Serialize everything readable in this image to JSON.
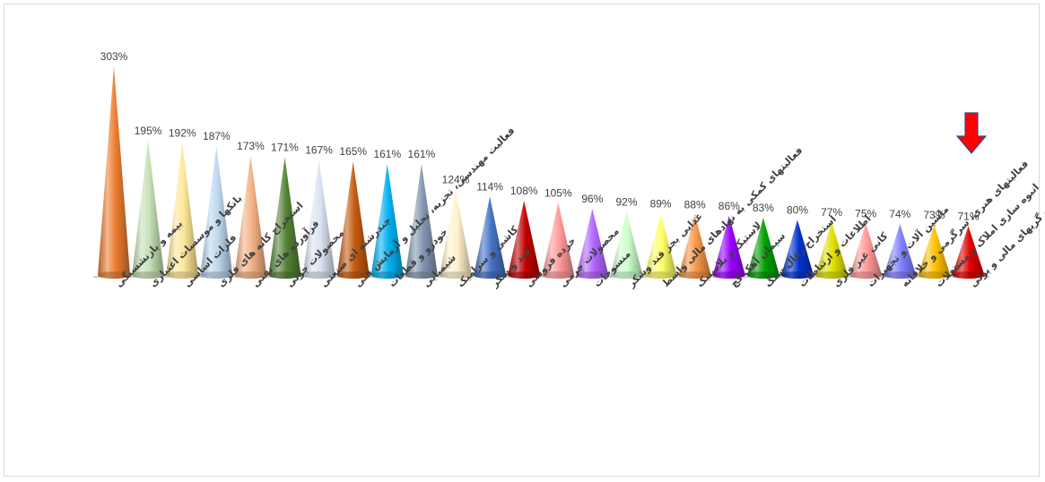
{
  "chart_data": {
    "type": "bar",
    "bar_shape": "cone",
    "categories": [
      "بیمه و بازنشستگی",
      "بانکها و موسسات اعتباری",
      "فلزات اساسی",
      "استخراج کانه های فلزی",
      "فرآورده های نفتی",
      "محصولات چوبی",
      "چندرشته ای صنعتی",
      "فعالیت مهندسی، تجزیه، تحلیل و آزمایش فنی",
      "خودرو و قطعات",
      "شیمیایی",
      "کاشی و سرامیک",
      "قند و شکر",
      "خرده فروشی",
      "محصولات چرمی",
      "منسوجات",
      "غذایی بجز قند وشکر",
      "فعالیتهای کمکی به نهادهای مالی واسط",
      "لاستیک و پلاستیک",
      "سیمان آهک گچ",
      "استخراج زغال سنگ",
      "اطلاعات و ارتباطات",
      "کانی غیر فلزی",
      "ماشین آلات و تجهیزات",
      "فعالیتهای هنری، سرگرمی و خلاقانه",
      "انبوه سازی املاک و مستغلات",
      "واسطه گریهای مالی و پولی"
    ],
    "values": [
      303,
      195,
      192,
      187,
      173,
      171,
      167,
      165,
      161,
      161,
      124,
      114,
      108,
      105,
      96,
      92,
      89,
      88,
      86,
      83,
      80,
      77,
      75,
      74,
      73,
      71
    ],
    "value_labels": [
      "303%",
      "195%",
      "192%",
      "187%",
      "173%",
      "171%",
      "167%",
      "165%",
      "161%",
      "161%",
      "124%",
      "114%",
      "108%",
      "105%",
      "96%",
      "92%",
      "89%",
      "88%",
      "86%",
      "83%",
      "80%",
      "77%",
      "75%",
      "74%",
      "73%",
      "71%"
    ],
    "colors": [
      "#ED7D31",
      "#C5E0B4",
      "#FFE699",
      "#BDD7EE",
      "#F4B183",
      "#548235",
      "#DAE3F3",
      "#C55A11",
      "#00B0F0",
      "#8497B0",
      "#FFF2CC",
      "#4472C4",
      "#C00000",
      "#FF9999",
      "#B266FF",
      "#CCFFCC",
      "#FFFF66",
      "#F79646",
      "#9900FF",
      "#00A000",
      "#0033CC",
      "#E0E000",
      "#FF9999",
      "#7F7FFF",
      "#FFC000",
      "#E00000"
    ],
    "title": "",
    "xlabel": "",
    "ylabel": "",
    "ylim": [
      0,
      303
    ],
    "grid": false,
    "legend": "none",
    "units": "%",
    "annotation_icon": "red-down-arrow-icon"
  }
}
